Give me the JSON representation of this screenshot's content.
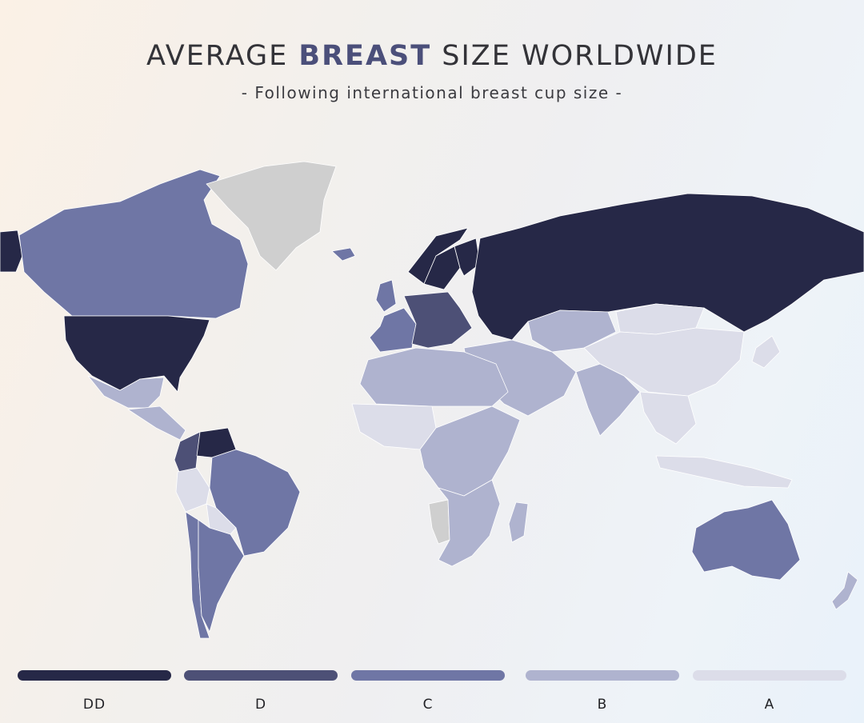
{
  "header": {
    "title_pre": "AVERAGE ",
    "title_highlight": "BREAST",
    "title_post": " SIZE WORLDWIDE",
    "subtitle": "- Following international breast cup size -"
  },
  "colors": {
    "DD": "#262847",
    "D": "#4d5076",
    "C": "#6f76a5",
    "B": "#afb3cf",
    "A": "#dcdde9",
    "no_data": "#cfcfcf",
    "ocean": "none"
  },
  "legend": [
    {
      "key": "DD",
      "label": "DD"
    },
    {
      "key": "D",
      "label": "D"
    },
    {
      "key": "C",
      "label": "C"
    },
    {
      "key": "B",
      "label": "B"
    },
    {
      "key": "A",
      "label": "A"
    }
  ],
  "regions": [
    {
      "region": "Alaska",
      "category": "DD"
    },
    {
      "region": "Canada",
      "category": "C"
    },
    {
      "region": "United States",
      "category": "DD"
    },
    {
      "region": "Greenland",
      "category": "no_data"
    },
    {
      "region": "Iceland",
      "category": "C"
    },
    {
      "region": "Mexico",
      "category": "B"
    },
    {
      "region": "Central America",
      "category": "B"
    },
    {
      "region": "Venezuela",
      "category": "DD"
    },
    {
      "region": "Colombia",
      "category": "D"
    },
    {
      "region": "Brazil",
      "category": "C"
    },
    {
      "region": "Peru",
      "category": "A"
    },
    {
      "region": "Bolivia",
      "category": "A"
    },
    {
      "region": "Chile",
      "category": "C"
    },
    {
      "region": "Argentina",
      "category": "C"
    },
    {
      "region": "Norway",
      "category": "DD"
    },
    {
      "region": "Sweden",
      "category": "DD"
    },
    {
      "region": "Finland",
      "category": "DD"
    },
    {
      "region": "United Kingdom",
      "category": "C"
    },
    {
      "region": "Western Europe",
      "category": "C"
    },
    {
      "region": "Central Europe",
      "category": "D"
    },
    {
      "region": "Russia",
      "category": "DD"
    },
    {
      "region": "Kazakhstan",
      "category": "B"
    },
    {
      "region": "China",
      "category": "A"
    },
    {
      "region": "Mongolia",
      "category": "A"
    },
    {
      "region": "Middle East",
      "category": "B"
    },
    {
      "region": "India",
      "category": "B"
    },
    {
      "region": "Southeast Asia",
      "category": "A"
    },
    {
      "region": "Japan",
      "category": "A"
    },
    {
      "region": "Indonesia",
      "category": "A"
    },
    {
      "region": "North Africa",
      "category": "B"
    },
    {
      "region": "West Africa",
      "category": "A"
    },
    {
      "region": "Central Africa",
      "category": "B"
    },
    {
      "region": "Southern Africa",
      "category": "B"
    },
    {
      "region": "Namibia",
      "category": "no_data"
    },
    {
      "region": "Madagascar",
      "category": "B"
    },
    {
      "region": "Australia",
      "category": "C"
    },
    {
      "region": "New Zealand",
      "category": "B"
    }
  ]
}
